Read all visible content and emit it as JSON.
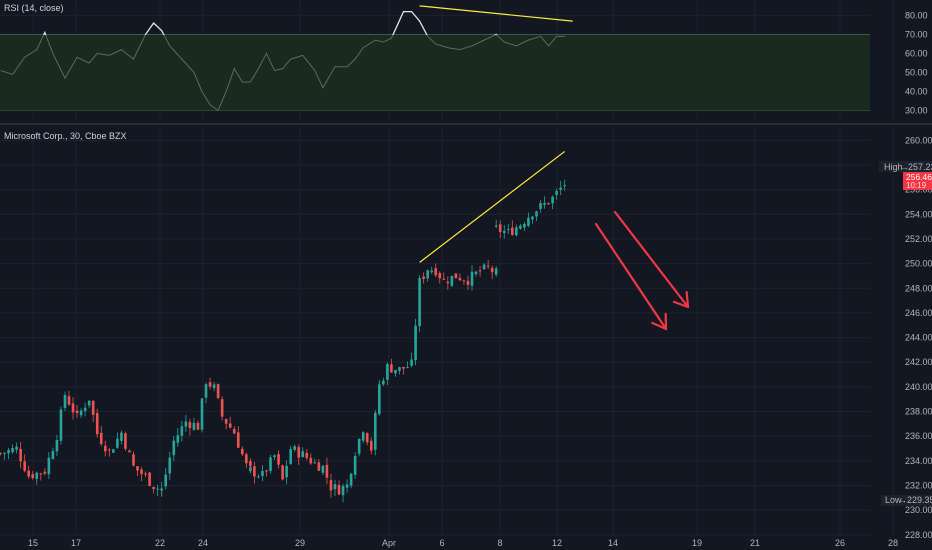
{
  "colors": {
    "background": "#131722",
    "grid": "#1e2230",
    "up": "#26a69a",
    "down": "#ef5350",
    "rsi_line": "#b2b5be",
    "rsi_band": "#1b2a1e",
    "trendline": "#ffeb3b",
    "arrow": "#f23645",
    "label_text": "#b2b5be",
    "price_tag": "#f23645"
  },
  "rsi_panel": {
    "title": "RSI (14, close)",
    "ticks": [
      "80.00",
      "70.00",
      "60.00",
      "50.00",
      "40.00",
      "30.00"
    ]
  },
  "price_panel": {
    "title": "Microsoft Corp., 30, Cboe BZX",
    "ticks": [
      "260.00",
      "258.00",
      "256.00",
      "254.00",
      "252.00",
      "250.00",
      "248.00",
      "246.00",
      "244.00",
      "242.00",
      "240.00",
      "238.00",
      "236.00",
      "234.00",
      "232.00",
      "230.00",
      "228.00"
    ],
    "high_label": "High",
    "high_value": "257.23",
    "low_label": "Low",
    "low_value": "229.35",
    "last_price": "256.46",
    "countdown": "10:19"
  },
  "x_axis": {
    "ticks": [
      "15",
      "17",
      "22",
      "24",
      "29",
      "Apr",
      "6",
      "8",
      "12",
      "14",
      "19",
      "21",
      "26",
      "28"
    ]
  },
  "chart_data": {
    "type": "candlestick",
    "title": "Microsoft Corp., 30, Cboe BZX",
    "ylim": [
      227.5,
      261
    ],
    "rsi_ylim": [
      25,
      86
    ],
    "rsi_band": [
      30,
      70
    ],
    "segments": [
      {
        "index_range": [
          0,
          40
        ],
        "points": [
          [
            0,
            234.6
          ],
          [
            4,
            235
          ],
          [
            7,
            232.8
          ],
          [
            11,
            233.2
          ],
          [
            14,
            236.1
          ],
          [
            16,
            239.4
          ],
          [
            19,
            237.5
          ],
          [
            22,
            239.1
          ],
          [
            24,
            236.2
          ],
          [
            27,
            234.7
          ],
          [
            30,
            236.3
          ],
          [
            33,
            233.5
          ],
          [
            36,
            232.7
          ],
          [
            38,
            232
          ],
          [
            40,
            231.6
          ]
        ]
      },
      {
        "index_range": [
          40,
          62
        ],
        "points": [
          [
            40,
            231.6
          ],
          [
            43,
            235.6
          ],
          [
            46,
            237.2
          ],
          [
            49,
            236.8
          ],
          [
            51,
            240.5
          ],
          [
            53,
            239.9
          ],
          [
            55,
            237.6
          ],
          [
            58,
            236.3
          ],
          [
            61,
            233.6
          ],
          [
            62,
            233.2
          ]
        ]
      },
      {
        "index_range": [
          62,
          94
        ],
        "points": [
          [
            62,
            233.2
          ],
          [
            65,
            232.8
          ],
          [
            68,
            234.4
          ],
          [
            70,
            232.4
          ],
          [
            72,
            235
          ],
          [
            75,
            234.5
          ],
          [
            78,
            233.8
          ],
          [
            80,
            233.5
          ],
          [
            82,
            231.9
          ],
          [
            84,
            231.7
          ],
          [
            86,
            232
          ],
          [
            88,
            234.8
          ],
          [
            90,
            236.7
          ],
          [
            92,
            235
          ],
          [
            94,
            240.1
          ]
        ]
      },
      {
        "index_range": [
          94,
          123
        ],
        "points": [
          [
            94,
            240.1
          ],
          [
            96,
            241.6
          ],
          [
            99,
            241.4
          ],
          [
            102,
            241.8
          ],
          [
            104,
            248.5
          ],
          [
            106,
            249.6
          ],
          [
            108,
            249.5
          ],
          [
            110,
            248.6
          ],
          [
            113,
            249
          ],
          [
            116,
            248.7
          ],
          [
            119,
            249.4
          ],
          [
            121,
            249.6
          ],
          [
            123,
            249.2
          ]
        ]
      },
      {
        "index_range": [
          123,
          140
        ],
        "points": [
          [
            123,
            252.8
          ],
          [
            126,
            252.5
          ],
          [
            129,
            253.2
          ],
          [
            132,
            254.2
          ],
          [
            135,
            254.8
          ],
          [
            137,
            255.3
          ],
          [
            139,
            256.1
          ],
          [
            140,
            256.46
          ]
        ]
      }
    ],
    "rsi_points": [
      [
        0,
        51
      ],
      [
        3,
        49
      ],
      [
        6,
        58
      ],
      [
        9,
        62
      ],
      [
        11,
        71
      ],
      [
        13,
        60
      ],
      [
        16,
        47
      ],
      [
        19,
        58
      ],
      [
        22,
        55
      ],
      [
        24,
        60
      ],
      [
        27,
        59
      ],
      [
        30,
        62
      ],
      [
        33,
        57
      ],
      [
        36,
        70
      ],
      [
        38,
        76
      ],
      [
        40,
        72
      ],
      [
        42,
        64
      ],
      [
        45,
        57
      ],
      [
        48,
        50
      ],
      [
        50,
        40
      ],
      [
        52,
        33
      ],
      [
        54,
        30
      ],
      [
        56,
        40
      ],
      [
        58,
        52
      ],
      [
        60,
        45
      ],
      [
        62,
        45
      ],
      [
        64,
        52
      ],
      [
        66,
        60
      ],
      [
        68,
        51
      ],
      [
        70,
        52
      ],
      [
        72,
        57
      ],
      [
        75,
        59
      ],
      [
        78,
        51
      ],
      [
        80,
        42
      ],
      [
        83,
        53
      ],
      [
        86,
        53
      ],
      [
        88,
        57
      ],
      [
        90,
        63
      ],
      [
        93,
        67
      ],
      [
        95,
        66
      ],
      [
        97,
        68
      ],
      [
        100,
        82
      ],
      [
        102,
        82
      ],
      [
        104,
        77
      ],
      [
        106,
        69
      ],
      [
        108,
        65
      ],
      [
        111,
        63
      ],
      [
        114,
        62
      ],
      [
        117,
        64
      ],
      [
        120,
        67
      ],
      [
        123,
        70
      ],
      [
        125,
        66
      ],
      [
        128,
        64
      ],
      [
        131,
        67
      ],
      [
        134,
        69
      ],
      [
        136,
        64
      ],
      [
        138,
        69
      ],
      [
        140,
        69
      ]
    ],
    "annotations": {
      "price_trendline": [
        [
          104,
          250.1
        ],
        [
          140,
          259.1
        ]
      ],
      "rsi_trendline": [
        [
          104,
          85
        ],
        [
          142,
          77
        ]
      ],
      "arrows": 2
    }
  }
}
